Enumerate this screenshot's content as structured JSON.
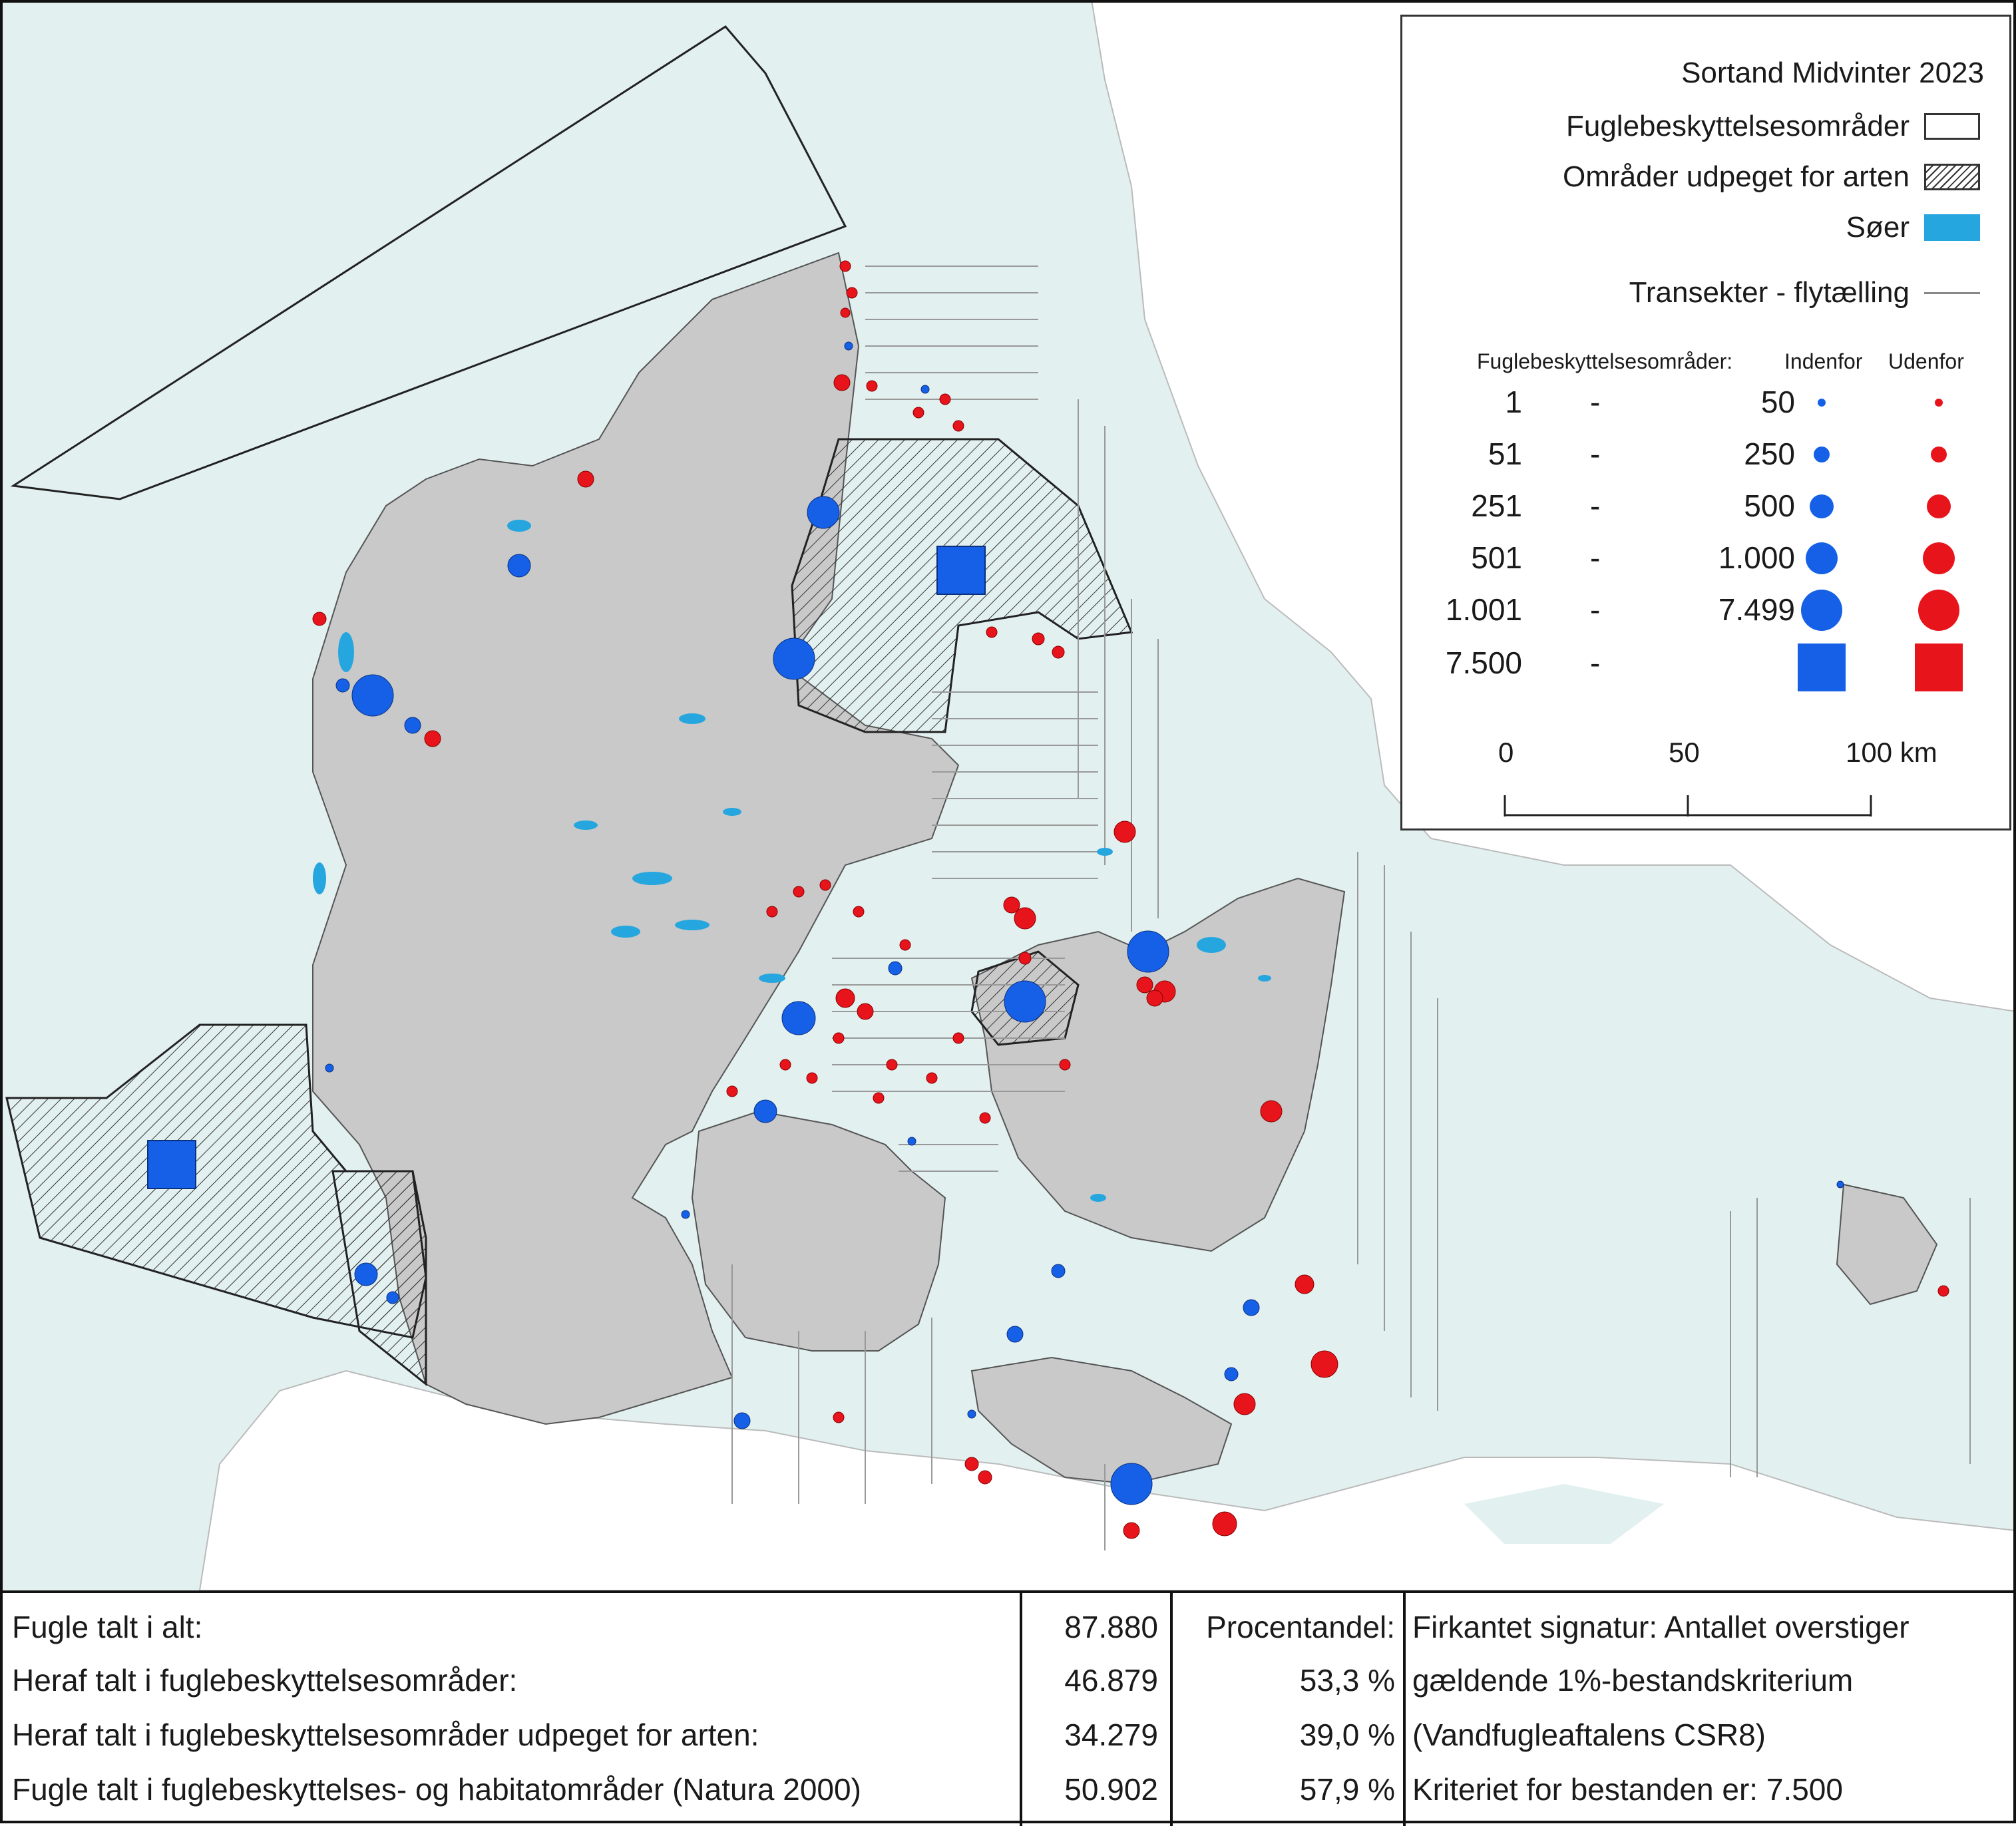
{
  "legend": {
    "title": "Sortand Midvinter 2023",
    "bird_areas": "Fuglebeskyttelsesområder",
    "designated_areas": "Områder udpeget for arten",
    "lakes": "Søer",
    "transects": "Transekter - flytælling",
    "size_header": "Fuglebeskyttelsesområder:",
    "inside": "Indenfor",
    "outside": "Udenfor",
    "dash": "-",
    "classes": [
      {
        "from": "1",
        "to": "50"
      },
      {
        "from": "51",
        "to": "250"
      },
      {
        "from": "251",
        "to": "500"
      },
      {
        "from": "501",
        "to": "1.000"
      },
      {
        "from": "1.001",
        "to": "7.499"
      },
      {
        "from": "7.500",
        "to": ""
      }
    ],
    "scale": {
      "s0": "0",
      "s1": "50",
      "s2": "100 km"
    },
    "colors": {
      "inside": "#1560e6",
      "outside": "#e8141c",
      "lake": "#26a6df",
      "land": "#c8c9c8",
      "sea": "#e3f0f0",
      "designated_hatch": "#333333"
    }
  },
  "stats": {
    "rows": [
      {
        "label": "Fugle talt i alt:",
        "value": "87.880",
        "pct": "Procentandel:",
        "note": "Firkantet signatur: Antallet overstiger"
      },
      {
        "label": "Heraf talt i fuglebeskyttelsesområder:",
        "value": "46.879",
        "pct": "53,3 %",
        "note": "gældende 1%-bestandskriterium"
      },
      {
        "label": "Heraf talt i fuglebeskyttelsesområder udpeget for arten:",
        "value": "34.279",
        "pct": "39,0 %",
        "note": "(Vandfugleaftalens CSR8)"
      },
      {
        "label": "Fugle talt i fuglebeskyttelses- og habitatområder (Natura 2000)",
        "value": "50.902",
        "pct": "57,9 %",
        "note": "Kriteriet for bestanden er: 7.500"
      }
    ]
  }
}
